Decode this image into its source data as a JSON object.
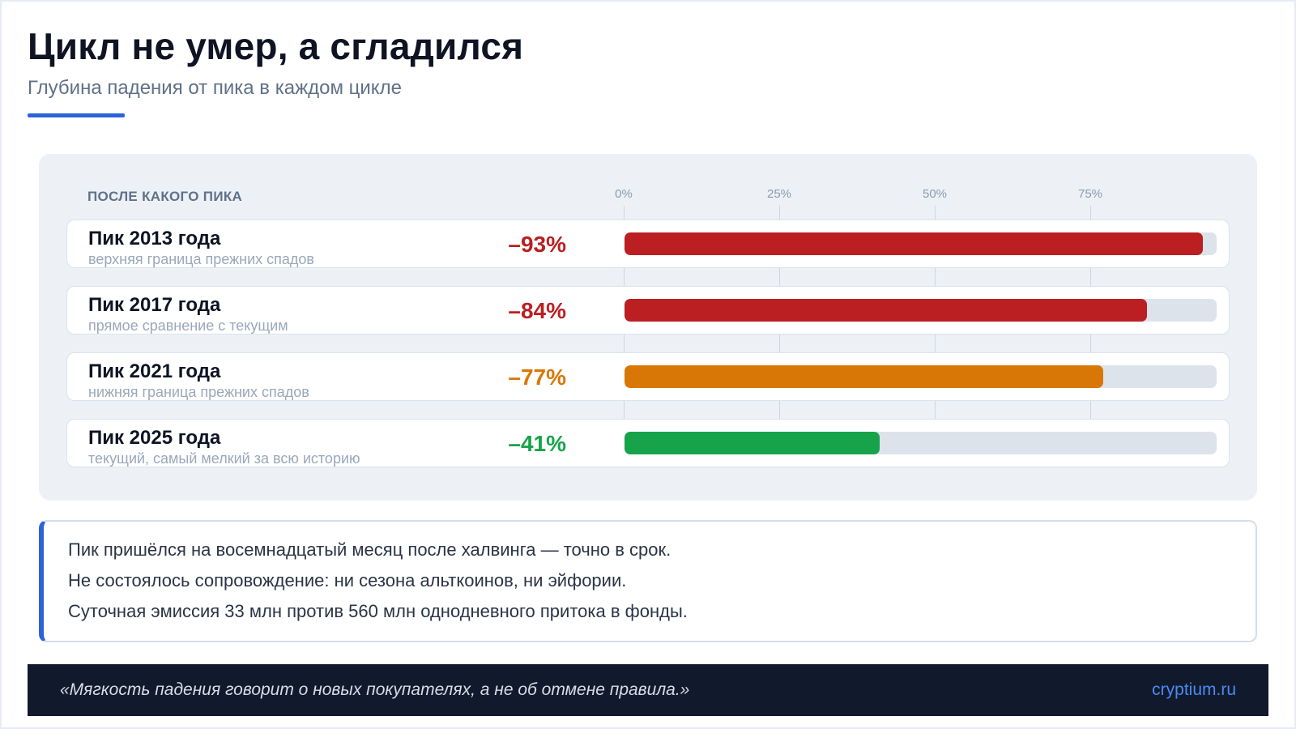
{
  "header": {
    "title": "Цикл не умер, а сгладился",
    "subtitle": "Глубина падения от пика в каждом цикле"
  },
  "table": {
    "column_header": "ПОСЛЕ КАКОГО ПИКА"
  },
  "chart_data": {
    "type": "bar",
    "orientation": "horizontal",
    "xlim": [
      0,
      100
    ],
    "ticks": [
      "0%",
      "25%",
      "50%",
      "75%"
    ],
    "tick_values": [
      0,
      25,
      50,
      75
    ],
    "grid": true,
    "rows": [
      {
        "label": "Пик 2013 года",
        "sublabel": "верхняя граница прежних спадов",
        "value_text": "–93%",
        "value": 93,
        "color": "#bb1f22"
      },
      {
        "label": "Пик 2017 года",
        "sublabel": "прямое сравнение с текущим",
        "value_text": "–84%",
        "value": 84,
        "color": "#bb1f22"
      },
      {
        "label": "Пик 2021 года",
        "sublabel": "нижняя граница прежних спадов",
        "value_text": "–77%",
        "value": 77,
        "color": "#d97706"
      },
      {
        "label": "Пик 2025 года",
        "sublabel": "текущий, самый мелкий за всю историю",
        "value_text": "–41%",
        "value": 41,
        "color": "#17a34a"
      }
    ]
  },
  "notes": [
    "Пик пришёлся на восемнадцатый месяц после халвинга — точно в срок.",
    "Не состоялось сопровождение: ни сезона альткоинов, ни эйфории.",
    "Суточная эмиссия 33 млн против 560 млн однодневного притока в фонды."
  ],
  "footer": {
    "quote": "«Мягкость падения говорит о новых покупателях, а не об отмене правила.»",
    "site": "cryptium.ru"
  },
  "colors": {
    "accent": "#2b63d9",
    "track": "#dde3eb",
    "footer_bg": "#111a2c",
    "link": "#4a8af0"
  }
}
